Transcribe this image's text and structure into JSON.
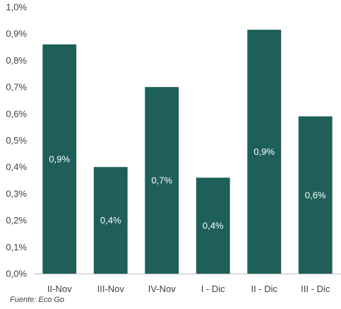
{
  "chart_data": {
    "type": "bar",
    "categories": [
      "II-Nov",
      "III-Nov",
      "IV-Nov",
      "I - Dic",
      "II - Dic",
      "III - Dic"
    ],
    "values": [
      0.86,
      0.4,
      0.7,
      0.36,
      0.915,
      0.59
    ],
    "data_labels": [
      "0,9%",
      "0,4%",
      "0,7%",
      "0,4%",
      "0,9%",
      "0,6%"
    ],
    "y_ticks": [
      "0,0%",
      "0,1%",
      "0,2%",
      "0,3%",
      "0,4%",
      "0,5%",
      "0,6%",
      "0,7%",
      "0,8%",
      "0,9%",
      "1,0%"
    ],
    "ylim": [
      0,
      1.0
    ],
    "grid": false,
    "title": "",
    "xlabel": "",
    "ylabel": "",
    "bar_color": "#1e5f5a",
    "axis_color": "#bfbfbf",
    "text_color": "#404040",
    "label_color": "#ffffff"
  },
  "source": "Fuente: Eco Go"
}
